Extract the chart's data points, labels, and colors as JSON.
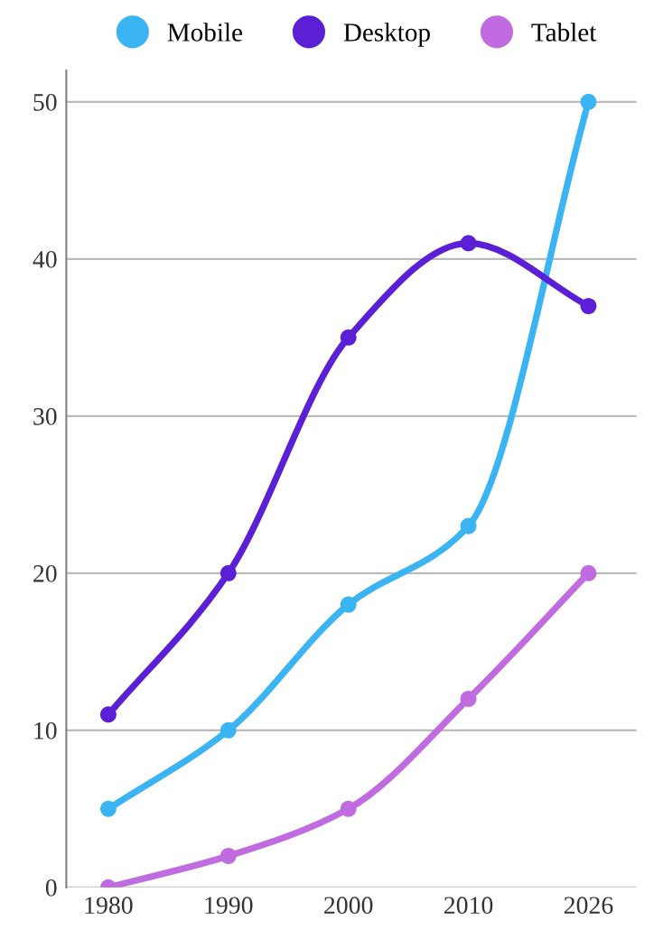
{
  "chart_data": {
    "type": "line",
    "categories": [
      "1980",
      "1990",
      "2000",
      "2010",
      "2026"
    ],
    "series": [
      {
        "name": "Mobile",
        "color": "#3ab4f2",
        "values": [
          5,
          10,
          18,
          23,
          50
        ]
      },
      {
        "name": "Desktop",
        "color": "#5b1fd6",
        "values": [
          11,
          20,
          35,
          41,
          37
        ]
      },
      {
        "name": "Tablet",
        "color": "#c06be0",
        "values": [
          0,
          2,
          5,
          12,
          20
        ]
      }
    ],
    "ylim": [
      0,
      52
    ],
    "yticks": [
      0,
      10,
      20,
      30,
      40,
      50
    ],
    "grid": "y",
    "legend": "top",
    "marker": "circle",
    "line_style": "solid"
  }
}
